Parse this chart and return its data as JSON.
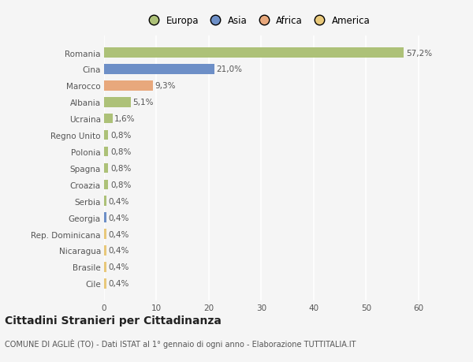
{
  "categories": [
    "Romania",
    "Cina",
    "Marocco",
    "Albania",
    "Ucraina",
    "Regno Unito",
    "Polonia",
    "Spagna",
    "Croazia",
    "Serbia",
    "Georgia",
    "Rep. Dominicana",
    "Nicaragua",
    "Brasile",
    "Cile"
  ],
  "values": [
    57.2,
    21.0,
    9.3,
    5.1,
    1.6,
    0.8,
    0.8,
    0.8,
    0.8,
    0.4,
    0.4,
    0.4,
    0.4,
    0.4,
    0.4
  ],
  "labels": [
    "57,2%",
    "21,0%",
    "9,3%",
    "5,1%",
    "1,6%",
    "0,8%",
    "0,8%",
    "0,8%",
    "0,8%",
    "0,4%",
    "0,4%",
    "0,4%",
    "0,4%",
    "0,4%",
    "0,4%"
  ],
  "colors": [
    "#adc178",
    "#6d8fc7",
    "#e8a87c",
    "#adc178",
    "#adc178",
    "#adc178",
    "#adc178",
    "#adc178",
    "#adc178",
    "#adc178",
    "#6d8fc7",
    "#e8c87a",
    "#e8c87a",
    "#e8c87a",
    "#e8c87a"
  ],
  "legend_labels": [
    "Europa",
    "Asia",
    "Africa",
    "America"
  ],
  "legend_colors": [
    "#adc178",
    "#6d8fc7",
    "#e8a87c",
    "#e8c87a"
  ],
  "title": "Cittadini Stranieri per Cittadinanza",
  "subtitle": "COMUNE DI AGLIÈ (TO) - Dati ISTAT al 1° gennaio di ogni anno - Elaborazione TUTTITALIA.IT",
  "xlim": [
    0,
    65
  ],
  "xticks": [
    0,
    10,
    20,
    30,
    40,
    50,
    60
  ],
  "background_color": "#f5f5f5",
  "grid_color": "#ffffff",
  "bar_height": 0.6,
  "label_fontsize": 7.5,
  "tick_fontsize": 7.5,
  "title_fontsize": 10,
  "subtitle_fontsize": 7
}
